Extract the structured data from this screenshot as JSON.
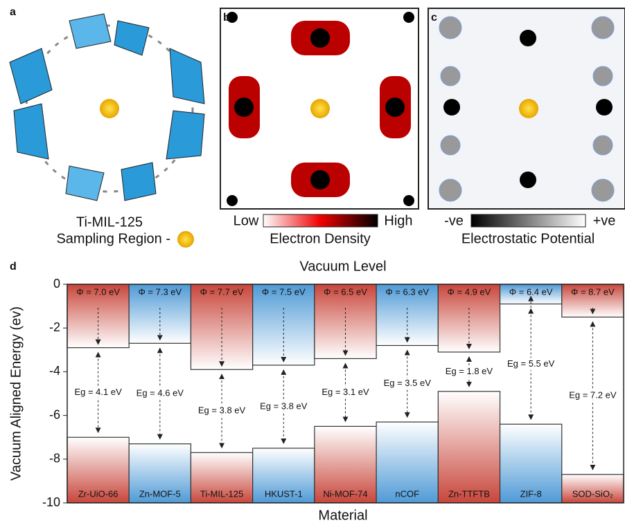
{
  "panels": {
    "a": {
      "label": "a",
      "caption": "Ti-MIL-125",
      "caption2": "Sampling Region -"
    },
    "b": {
      "label": "b",
      "low": "Low",
      "high": "High",
      "caption": "Electron Density"
    },
    "c": {
      "label": "c",
      "low": "-ve",
      "high": "+ve",
      "caption": "Electrostatic Potential"
    }
  },
  "chart_data": {
    "type": "band-diagram",
    "label": "d",
    "title": "Vacuum Level",
    "x_label": "Material",
    "y_label": "Vacuum Aligned Energy (ev)",
    "categories": [
      "Zr-UiO-66",
      "Zn-MOF-5",
      "Ti-MIL-125",
      "HKUST-1",
      "Ni-MOF-74",
      "nCOF",
      "Zn-TTFTB",
      "ZIF-8",
      "SOD-SiO₂"
    ],
    "colors": [
      "#c8463b",
      "#4f9ad6",
      "#c8463b",
      "#4f9ad6",
      "#c8463b",
      "#4f9ad6",
      "#c8463b",
      "#4f9ad6",
      "#c8463b"
    ],
    "cb_values": [
      -2.9,
      -2.7,
      -3.9,
      -3.7,
      -3.4,
      -2.8,
      -3.1,
      -0.9,
      -1.5
    ],
    "vb_values": [
      -7.0,
      -7.3,
      -7.7,
      -7.5,
      -6.5,
      -6.3,
      -4.9,
      -6.4,
      -8.7
    ],
    "phi_labels": [
      "Φ = 7.0 eV",
      "Φ = 7.3 eV",
      "Φ = 7.7 eV",
      "Φ = 7.5 eV",
      "Φ = 6.5 eV",
      "Φ = 6.3 eV",
      "Φ = 4.9 eV",
      "Φ = 6.4 eV",
      "Φ = 8.7 eV"
    ],
    "gap_labels": [
      "Eg = 4.1 eV",
      "Eg = 4.6 eV",
      "Eg = 3.8 eV",
      "Eg = 3.8 eV",
      "Eg = 3.1 eV",
      "Eg = 3.5 eV",
      "Eg = 1.8 eV",
      "Eg = 5.5 eV",
      "Eg = 7.2 eV"
    ],
    "ylim": [
      -10,
      0
    ],
    "yticks": [
      0,
      -2,
      -4,
      -6,
      -8,
      -10
    ]
  }
}
